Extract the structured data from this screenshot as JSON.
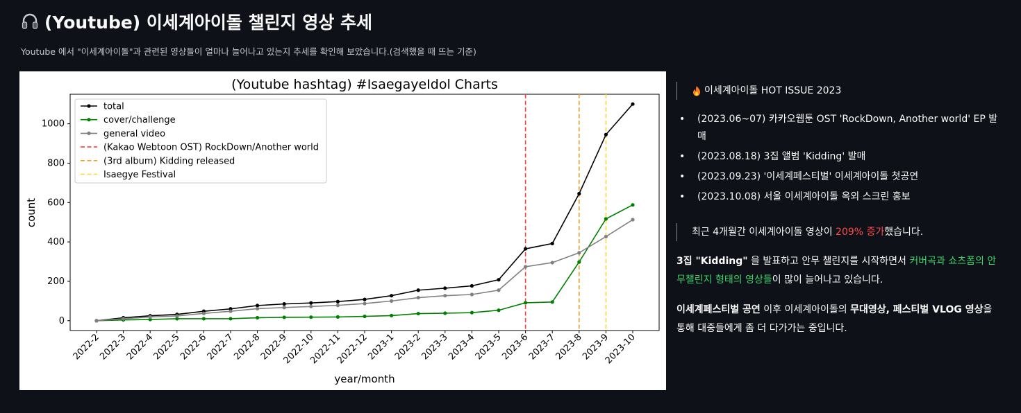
{
  "header": {
    "title": "(Youtube) 이세계아이돌 챌린지 영상 추세",
    "title_icon": "headphone-icon",
    "subtitle": "Youtube 에서 \"이세계아이돌\"과 관련된 영상들이 얼마나 늘어나고 있는지 추세를 확인해 보았습니다.(검색했을 때 뜨는 기준)"
  },
  "chart_data": {
    "type": "line",
    "title": "(Youtube hashtag) #IsaegayeIdol Charts",
    "xlabel": "year/month",
    "ylabel": "count",
    "categories": [
      "2022-2",
      "2022-3",
      "2022-4",
      "2022-5",
      "2022-6",
      "2022-7",
      "2022-8",
      "2022-9",
      "2022-10",
      "2022-11",
      "2022-12",
      "2023-1",
      "2023-2",
      "2023-3",
      "2023-4",
      "2023-5",
      "2023-6",
      "2023-7",
      "2023-8",
      "2023-9",
      "2023-10"
    ],
    "yticks": [
      0,
      200,
      400,
      600,
      800,
      1000
    ],
    "ylim": [
      -50,
      1150
    ],
    "grid": false,
    "legend_position": "top-left",
    "series": [
      {
        "name": "total",
        "color": "#000000",
        "values": [
          0,
          15,
          25,
          32,
          48,
          60,
          77,
          85,
          90,
          97,
          108,
          127,
          155,
          165,
          177,
          208,
          365,
          392,
          645,
          945,
          1100
        ]
      },
      {
        "name": "cover/challenge",
        "color": "#008000",
        "values": [
          0,
          4,
          6,
          10,
          10,
          10,
          15,
          17,
          18,
          19,
          22,
          26,
          36,
          38,
          41,
          53,
          91,
          95,
          298,
          517,
          588
        ]
      },
      {
        "name": "general video",
        "color": "#808080",
        "values": [
          0,
          10,
          19,
          24,
          37,
          48,
          61,
          67,
          72,
          78,
          87,
          100,
          117,
          127,
          133,
          155,
          274,
          295,
          345,
          427,
          513
        ]
      }
    ],
    "vlines": [
      {
        "name": "(Kakao Webtoon OST) RockDown/Another world",
        "at": "2023-6",
        "color": "#f5413c"
      },
      {
        "name": "(3rd album) Kidding released",
        "at": "2023-8",
        "color": "#f5a126"
      },
      {
        "name": "Isaegye Festival",
        "at": "2023-9",
        "color": "#ffd33d"
      }
    ]
  },
  "hot_issue": {
    "icon": "fire-icon",
    "heading": "이세계아이돌 HOT ISSUE 2023",
    "items": [
      "(2023.06~07) 카카오웹툰 OST 'RockDown, Another world' EP 발매",
      "(2023.08.18) 3집 앨범 'Kidding' 발매",
      "(2023.09.23) '이세계페스티벌' 이세계아이돌 첫공연",
      "(2023.10.08) 서울 이세계아이돌 옥외 스크린 홍보"
    ]
  },
  "growth": {
    "prefix": "최근 4개월간 이세계아이돌 영상이 ",
    "highlight": "209% 증가",
    "suffix": "했습니다."
  },
  "para1": {
    "bold": "3집 \"Kidding\"",
    "text1": " 을 발표하고 안무 챌린지를 시작하면서 ",
    "green": "커버곡과 쇼츠폼의 안무챌린지 형태의 영상들",
    "text2": "이 많이 늘어나고 있습니다."
  },
  "para2": {
    "bold1": "이세계페스티벌 공연",
    "text1": " 이후 이세계아이돌의 ",
    "bold2": "무대영상, 페스티벌 VLOG 영상",
    "text2": "을 통해 대중들에게 좀 더 다가가는 중입니다."
  }
}
